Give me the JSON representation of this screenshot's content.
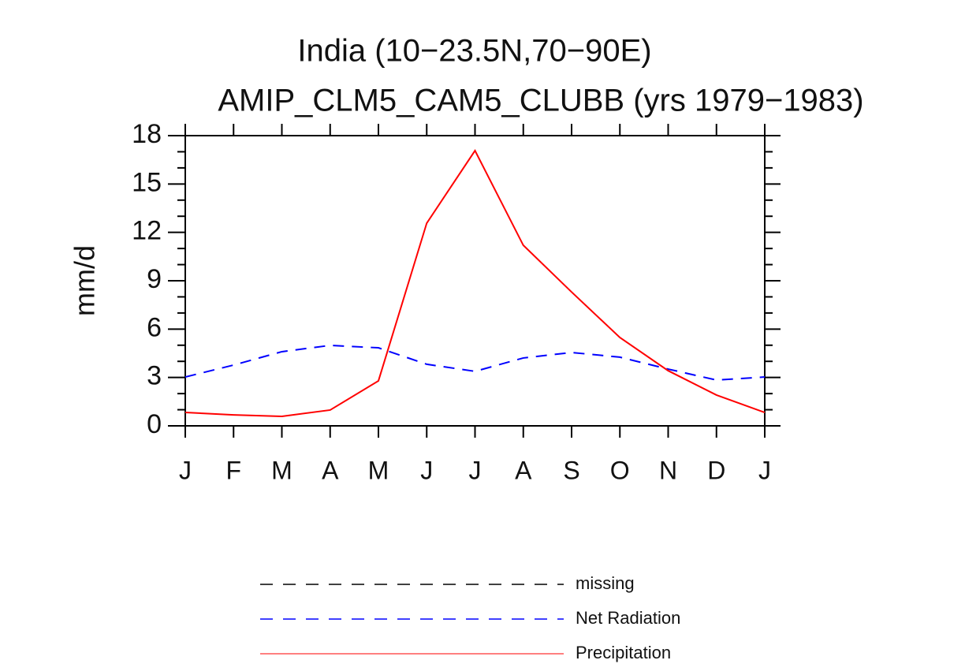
{
  "chart_data": {
    "type": "line",
    "title": "India (10−23.5N,70−90E)",
    "subtitle": "AMIP_CLM5_CAM5_CLUBB (yrs 1979−1983)",
    "y_label": "mm/d",
    "categories": [
      "J",
      "F",
      "M",
      "A",
      "M",
      "J",
      "J",
      "A",
      "S",
      "O",
      "N",
      "D",
      "J"
    ],
    "ylim": [
      0,
      18
    ],
    "yticks": [
      0,
      3,
      6,
      9,
      12,
      15,
      18
    ],
    "series": [
      {
        "name": "missing",
        "color": "#000000",
        "dashed": true,
        "values": [
          null,
          null,
          null,
          null,
          null,
          null,
          null,
          null,
          null,
          null,
          null,
          null,
          null
        ]
      },
      {
        "name": "Net Radiation",
        "color": "#0000ff",
        "dashed": true,
        "values": [
          3.03,
          3.77,
          4.6,
          4.99,
          4.84,
          3.82,
          3.38,
          4.21,
          4.55,
          4.26,
          3.52,
          2.84,
          3.03
        ]
      },
      {
        "name": "Precipitation",
        "color": "#ff0000",
        "dashed": false,
        "values": [
          0.83,
          0.68,
          0.59,
          0.98,
          2.79,
          12.57,
          17.07,
          11.2,
          8.3,
          5.48,
          3.42,
          1.91,
          0.83
        ]
      }
    ]
  }
}
